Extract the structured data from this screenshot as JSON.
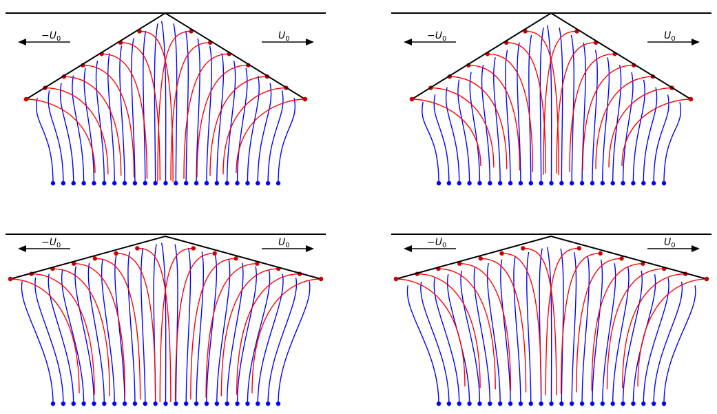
{
  "labels": {
    "left_velocity": "−U",
    "right_velocity": "U",
    "subscript": "0"
  },
  "colors": {
    "wall": "#000000",
    "upper_curve": "#ff0000",
    "lower_curve": "#0000ff",
    "marker_red": "#cc0000",
    "marker_blue": "#0000ff",
    "arrow": "#000000"
  },
  "panels": [
    {
      "id": "top-left",
      "apex_angle": "wide"
    },
    {
      "id": "top-right",
      "apex_angle": "wide"
    },
    {
      "id": "bottom-left",
      "apex_angle": "shallow"
    },
    {
      "id": "bottom-right",
      "apex_angle": "shallow"
    }
  ]
}
